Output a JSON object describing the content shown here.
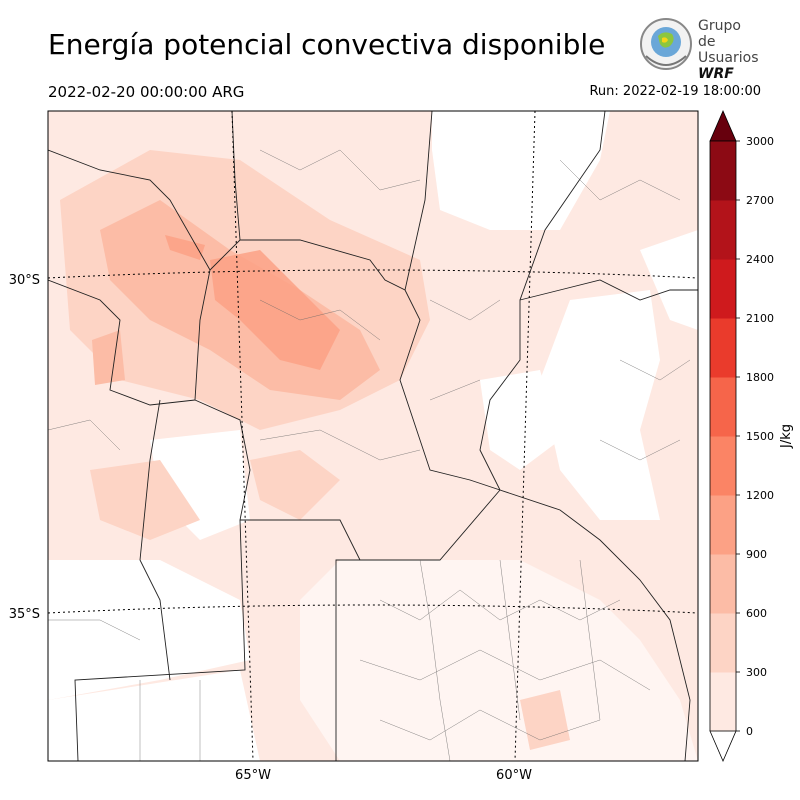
{
  "header": {
    "title": "Energía potencial convectiva disponible",
    "valid_time": "2022-02-20 00:00:00 ARG",
    "run_time": "Run: 2022-02-19 18:00:00"
  },
  "logo": {
    "line1": "Grupo de",
    "line2": "Usuarios",
    "line3": "WRF"
  },
  "map": {
    "lat_labels": [
      "30°S",
      "35°S"
    ],
    "lon_labels": [
      "65°W",
      "60°W"
    ]
  },
  "colorbar": {
    "unit_label": "J/kg",
    "levels": [
      0,
      300,
      600,
      900,
      1200,
      1500,
      1800,
      2100,
      2400,
      2700,
      3000
    ],
    "tick_labels": [
      "0",
      "300",
      "600",
      "900",
      "1200",
      "1500",
      "1800",
      "2100",
      "2400",
      "2700",
      "3000"
    ],
    "colors": [
      "#fee9e2",
      "#fdd4c5",
      "#fcbca6",
      "#fca185",
      "#fb8465",
      "#f6654a",
      "#ea3b2c",
      "#cf1a1d",
      "#b3131a",
      "#8c0a14"
    ],
    "extend_over_color": "#67000d",
    "extend_under_color": "#ffffff"
  }
}
